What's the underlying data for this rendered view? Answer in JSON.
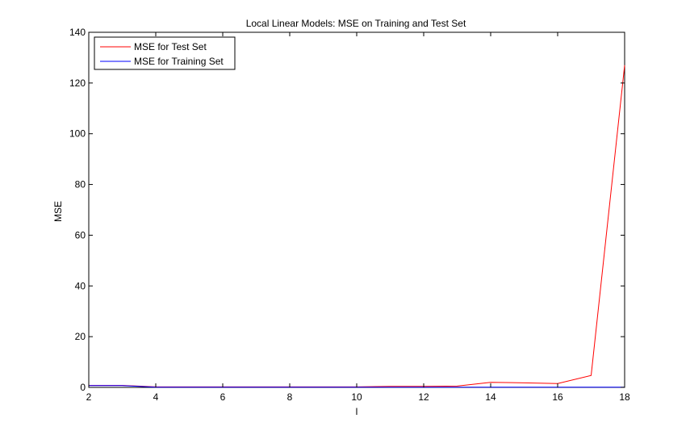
{
  "chart_data": {
    "type": "line",
    "title": "Local Linear Models: MSE on Training and Test Set",
    "xlabel": "l",
    "ylabel": "MSE",
    "xlim": [
      2,
      18
    ],
    "ylim": [
      0,
      140
    ],
    "xticks": [
      2,
      4,
      6,
      8,
      10,
      12,
      14,
      16,
      18
    ],
    "yticks": [
      0,
      20,
      40,
      60,
      80,
      100,
      120,
      140
    ],
    "grid": false,
    "legend_position": "top-left",
    "series": [
      {
        "name": "MSE for Test Set",
        "color": "#ff0000",
        "x": [
          2,
          3,
          4,
          5,
          6,
          7,
          8,
          9,
          10,
          11,
          12,
          13,
          14,
          15,
          16,
          17,
          18
        ],
        "y": [
          0.8,
          0.8,
          0.2,
          0.2,
          0.2,
          0.2,
          0.2,
          0.2,
          0.2,
          0.4,
          0.4,
          0.5,
          2.0,
          1.8,
          1.5,
          4.7,
          127
        ]
      },
      {
        "name": "MSE for Training Set",
        "color": "#0000ff",
        "x": [
          2,
          3,
          4,
          5,
          6,
          7,
          8,
          9,
          10,
          11,
          12,
          13,
          14,
          15,
          16,
          17,
          18
        ],
        "y": [
          0.7,
          0.7,
          0.1,
          0.1,
          0.1,
          0.1,
          0.1,
          0.1,
          0.1,
          0.1,
          0.1,
          0.1,
          0.1,
          0.1,
          0.1,
          0.1,
          0.1
        ]
      }
    ]
  }
}
